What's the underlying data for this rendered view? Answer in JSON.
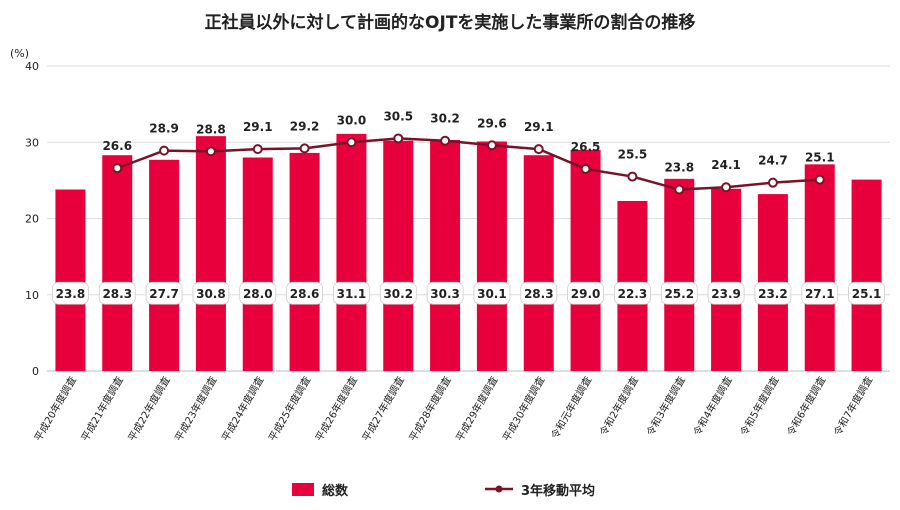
{
  "chart_data": {
    "type": "bar",
    "title": "正社員以外に対して計画的なOJTを実施した事業所の割合の推移",
    "ylabel": "(%)",
    "ylim": [
      0,
      40
    ],
    "yticks": [
      "0",
      "10",
      "20",
      "30",
      "40"
    ],
    "grid": true,
    "legend": "bottom",
    "colors": {
      "bar": "#e8003d",
      "line": "#7a1228",
      "grid": "#dddddd"
    },
    "categories": [
      "平成20年度調査",
      "平成21年度調査",
      "平成22年度調査",
      "平成23年度調査",
      "平成24年度調査",
      "平成25年度調査",
      "平成26年度調査",
      "平成27年度調査",
      "平成28年度調査",
      "平成29年度調査",
      "平成30年度調査",
      "令和元年度調査",
      "令和2年度調査",
      "令和3年度調査",
      "令和4年度調査",
      "令和5年度調査",
      "令和6年度調査",
      "令和7年度調査"
    ],
    "series": [
      {
        "name": "総数",
        "type": "bar",
        "values": [
          23.8,
          28.3,
          27.7,
          30.8,
          28.0,
          28.6,
          31.1,
          30.2,
          30.3,
          30.1,
          28.3,
          29.0,
          22.3,
          25.2,
          23.9,
          23.2,
          27.1,
          25.1
        ],
        "labels": [
          "23.8",
          "28.3",
          "27.7",
          "30.8",
          "28.0",
          "28.6",
          "31.1",
          "30.2",
          "30.3",
          "30.1",
          "28.3",
          "29.0",
          "22.3",
          "25.2",
          "23.9",
          "23.2",
          "27.1",
          "25.1"
        ]
      },
      {
        "name": "3年移動平均",
        "type": "line",
        "values": [
          null,
          26.6,
          28.9,
          28.8,
          29.1,
          29.2,
          30.0,
          30.5,
          30.2,
          29.6,
          29.1,
          26.5,
          25.5,
          23.8,
          24.1,
          24.7,
          25.1,
          null
        ],
        "labels": [
          "",
          "26.6",
          "28.9",
          "28.8",
          "29.1",
          "29.2",
          "30.0",
          "30.5",
          "30.2",
          "29.6",
          "29.1",
          "26.5",
          "25.5",
          "23.8",
          "24.1",
          "24.7",
          "25.1",
          ""
        ]
      }
    ]
  }
}
